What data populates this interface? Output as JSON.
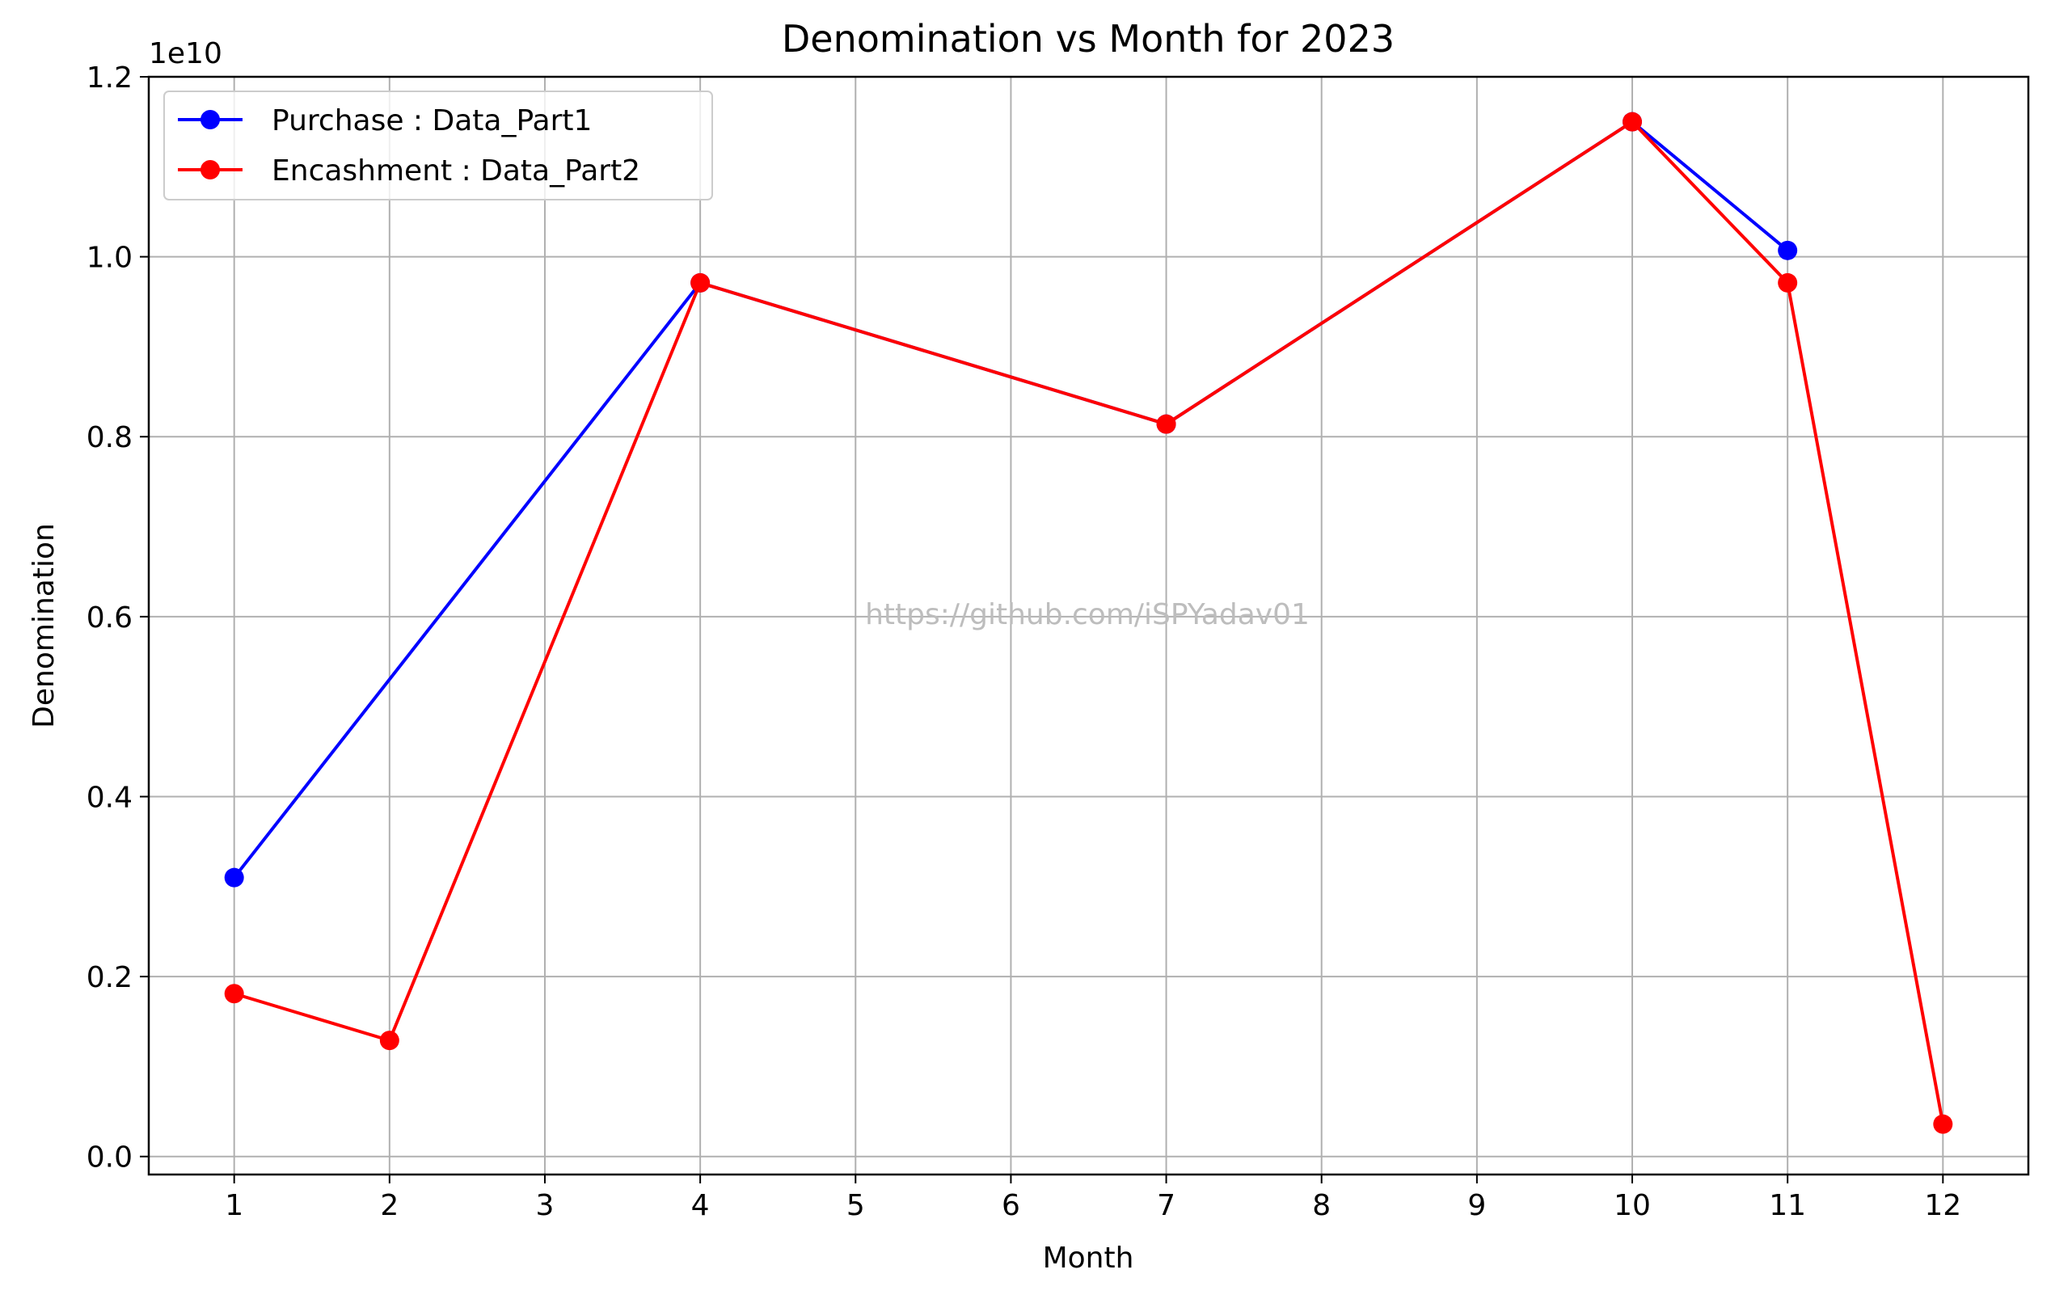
{
  "chart_data": {
    "type": "line",
    "title": "Denomination vs Month for 2023",
    "xlabel": "Month",
    "ylabel": "Denomination",
    "y_offset_label": "1e10",
    "x_ticks": [
      1,
      2,
      3,
      4,
      5,
      6,
      7,
      8,
      9,
      10,
      11,
      12
    ],
    "y_ticks": [
      "0.0",
      "0.2",
      "0.4",
      "0.6",
      "0.8",
      "1.0",
      "1.2"
    ],
    "xlim": [
      0.45,
      12.55
    ],
    "ylim": [
      -0.02,
      1.2
    ],
    "y_unit_multiplier": 10000000000,
    "grid": true,
    "legend_position": "upper-left",
    "series": [
      {
        "name": "Purchase : Data_Part1",
        "color": "#0000ff",
        "marker": "circle",
        "x": [
          1,
          4,
          7,
          10,
          11
        ],
        "y": [
          0.31,
          0.971,
          0.814,
          1.15,
          1.007
        ]
      },
      {
        "name": "Encashment : Data_Part2",
        "color": "#ff0000",
        "marker": "circle",
        "x": [
          1,
          2,
          4,
          7,
          10,
          11,
          12
        ],
        "y": [
          0.181,
          0.129,
          0.971,
          0.814,
          1.15,
          0.971,
          0.036
        ]
      }
    ],
    "watermark": "https://github.com/iSPYadav01"
  }
}
